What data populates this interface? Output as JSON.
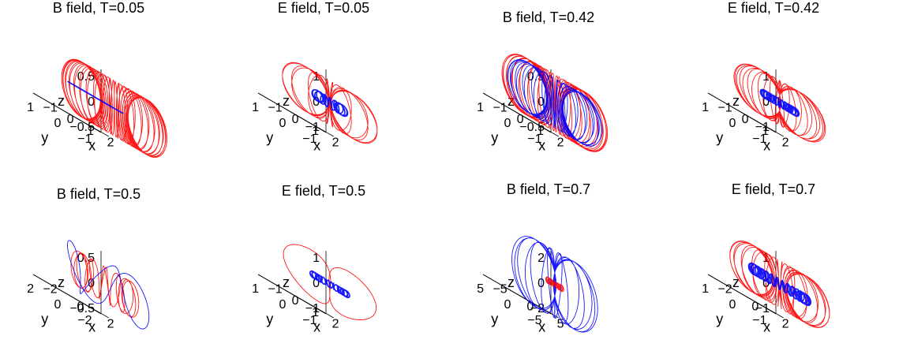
{
  "figure": {
    "colors": {
      "red": "#ff0000",
      "blue": "#0000ff",
      "axis": "#000000",
      "background": "#ffffff"
    }
  },
  "chart_data": [
    {
      "type": "3d-line",
      "title": "B field, T=0.05",
      "xlabel": "x",
      "ylabel": "y",
      "zlabel": "z",
      "xticks": [
        "−1",
        "0",
        "1",
        "2"
      ],
      "yticks": [
        "−1",
        "0",
        "1"
      ],
      "zticks": [
        "0.5",
        "0",
        "−0.5"
      ],
      "xlim": [
        -1.5,
        2.5
      ],
      "ylim": [
        -1.5,
        1.5
      ],
      "zlim": [
        -0.8,
        0.8
      ],
      "series": [
        {
          "color": "red",
          "shape": "dense torus bundle, offset in x",
          "cx": 1.0,
          "R": 1.2,
          "r": 0.7,
          "turns": 40,
          "zscale": 1.0
        },
        {
          "color": "blue",
          "shape": "single ring",
          "cx": 0,
          "R": 1.0,
          "r": 0,
          "turns": 1,
          "zscale": 1.0
        }
      ]
    },
    {
      "type": "3d-line",
      "title": "E field, T=0.05",
      "xlabel": "x",
      "ylabel": "y",
      "zlabel": "z",
      "xticks": [
        "−1",
        "0",
        "1",
        "2"
      ],
      "yticks": [
        "−1",
        "0",
        "1"
      ],
      "zticks": [
        "1",
        "0",
        "−1"
      ],
      "xlim": [
        -1.5,
        2.5
      ],
      "ylim": [
        -1.5,
        1.5
      ],
      "zlim": [
        -1.2,
        1.2
      ],
      "series": [
        {
          "color": "red",
          "shape": "poloidal loops",
          "R": 0.9,
          "r": 0.85,
          "turns": 14,
          "zscale": 1.0
        },
        {
          "color": "blue",
          "shape": "small torus",
          "R": 0.45,
          "r": 0.2,
          "turns": 14,
          "zscale": 1.0
        }
      ]
    },
    {
      "type": "3d-line",
      "title": "B field, T=0.42",
      "xlabel": "x",
      "ylabel": "y",
      "zlabel": "z",
      "xticks": [
        "−1",
        "0",
        "1",
        "2"
      ],
      "yticks": [
        "−1",
        "0",
        "1"
      ],
      "zticks": [
        "0.5",
        "0",
        "−0.5"
      ],
      "xlim": [
        -1.5,
        2.5
      ],
      "ylim": [
        -1.5,
        1.5
      ],
      "zlim": [
        -0.8,
        0.8
      ],
      "series": [
        {
          "color": "red",
          "shape": "flattened torus bundle",
          "R": 1.1,
          "r": 0.8,
          "turns": 30,
          "zscale": 0.9
        },
        {
          "color": "blue",
          "shape": "flattened torus bundle",
          "R": 1.0,
          "r": 0.7,
          "turns": 26,
          "zscale": 0.9
        }
      ]
    },
    {
      "type": "3d-line",
      "title": "E field, T=0.42",
      "xlabel": "x",
      "ylabel": "y",
      "zlabel": "z",
      "xticks": [
        "−1",
        "0",
        "1",
        "2"
      ],
      "yticks": [
        "−1",
        "0",
        "1"
      ],
      "zticks": [
        "1",
        "0",
        "−1"
      ],
      "xlim": [
        -1.5,
        2.5
      ],
      "ylim": [
        -1.5,
        1.5
      ],
      "zlim": [
        -1.2,
        1.2
      ],
      "series": [
        {
          "color": "red",
          "shape": "poloidal loops",
          "R": 0.8,
          "r": 0.85,
          "turns": 22,
          "zscale": 1.0
        },
        {
          "color": "blue",
          "shape": "dense small torus",
          "R": 0.55,
          "r": 0.15,
          "turns": 26,
          "zscale": 1.0
        }
      ]
    },
    {
      "type": "3d-line",
      "title": "B field, T=0.5",
      "xlabel": "x",
      "ylabel": "y",
      "zlabel": "z",
      "xticks": [
        "−2",
        "0",
        "2"
      ],
      "yticks": [
        "−2",
        "0",
        "2"
      ],
      "zticks": [
        "0.5",
        "0",
        "−0.5"
      ],
      "xlim": [
        -3,
        3
      ],
      "ylim": [
        -3,
        3
      ],
      "zlim": [
        -0.8,
        0.8
      ],
      "series": [
        {
          "color": "red",
          "shape": "knotted loops",
          "R": 1.6,
          "r": 0.5,
          "turns": 12,
          "zscale": 0.9
        },
        {
          "color": "blue",
          "shape": "knotted loops",
          "R": 2.2,
          "r": 0.6,
          "turns": 3,
          "zscale": 1.0
        }
      ]
    },
    {
      "type": "3d-line",
      "title": "E field, T=0.5",
      "xlabel": "x",
      "ylabel": "y",
      "zlabel": "z",
      "xticks": [
        "−1",
        "0",
        "1",
        "2"
      ],
      "yticks": [
        "−1",
        "0",
        "1"
      ],
      "zticks": [
        "1",
        "0",
        "−1"
      ],
      "xlim": [
        -1.5,
        2.5
      ],
      "ylim": [
        -1.5,
        1.5
      ],
      "zlim": [
        -1.2,
        1.2
      ],
      "series": [
        {
          "color": "red",
          "shape": "two thick poloidal loops",
          "R": 0.8,
          "r": 0.9,
          "turns": 2,
          "zscale": 1.0
        },
        {
          "color": "blue",
          "shape": "thick small torus",
          "R": 0.6,
          "r": 0.12,
          "turns": 20,
          "zscale": 1.0
        }
      ]
    },
    {
      "type": "3d-line",
      "title": "B field, T=0.7",
      "xlabel": "x",
      "ylabel": "y",
      "zlabel": "z",
      "xticks": [
        "−5",
        "0",
        "5"
      ],
      "yticks": [
        "−5",
        "0",
        "5"
      ],
      "zticks": [
        "2",
        "0",
        "−2"
      ],
      "xlim": [
        -7,
        7
      ],
      "ylim": [
        -7,
        7
      ],
      "zlim": [
        -3,
        3
      ],
      "series": [
        {
          "color": "blue",
          "shape": "large poloidal loops",
          "R": 3.0,
          "r": 3.2,
          "turns": 14,
          "zscale": 1.0
        },
        {
          "color": "red",
          "shape": "small ring bundle",
          "R": 1.0,
          "r": 0.3,
          "turns": 16,
          "zscale": 1.0
        }
      ]
    },
    {
      "type": "3d-line",
      "title": "E field, T=0.7",
      "xlabel": "x",
      "ylabel": "y",
      "zlabel": "z",
      "xticks": [
        "−2",
        "0",
        "2"
      ],
      "yticks": [
        "−1",
        "0",
        "1"
      ],
      "zticks": [
        "1",
        "0",
        "−1"
      ],
      "xlim": [
        -3,
        3
      ],
      "ylim": [
        -1.5,
        1.5
      ],
      "zlim": [
        -1.2,
        1.2
      ],
      "series": [
        {
          "color": "red",
          "shape": "poloidal loops",
          "R": 1.2,
          "r": 0.9,
          "turns": 22,
          "zscale": 1.0
        },
        {
          "color": "blue",
          "shape": "dense torus",
          "R": 1.1,
          "r": 0.2,
          "turns": 30,
          "zscale": 1.0
        }
      ]
    }
  ]
}
